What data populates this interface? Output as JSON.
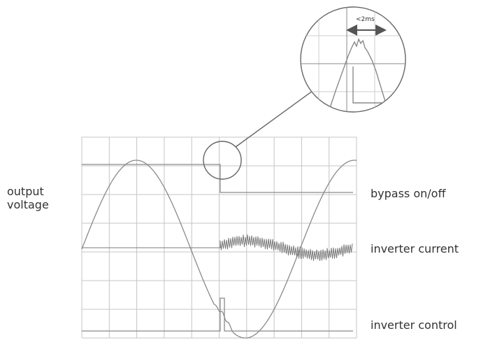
{
  "labels": {
    "output_voltage": [
      "output",
      "voltage"
    ],
    "bypass": "bypass on/off",
    "inverter_current": "inverter current",
    "inverter_control": "inverter control"
  },
  "zoom": {
    "duration_label": "<2ms"
  },
  "colors": {
    "trace": "#8a8a8a",
    "grid": "#bdbdbd",
    "leader": "#666666",
    "text": "#333333"
  }
}
